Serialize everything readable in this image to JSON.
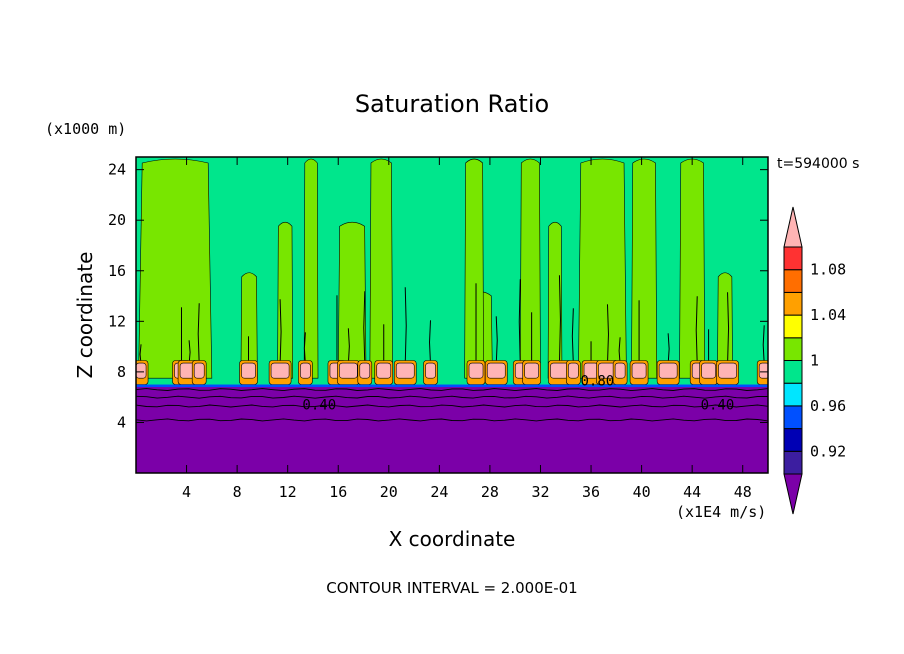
{
  "chart_data": {
    "type": "heatmap",
    "title": "Saturation Ratio",
    "xlabel": "X coordinate",
    "ylabel": "Z coordinate",
    "x_unit": "(x1E4 m/s)",
    "y_unit": "(x1000 m)",
    "time_label": "t=594000 s",
    "footer": "CONTOUR INTERVAL = 2.000E-01",
    "xlim": [
      0,
      50
    ],
    "ylim": [
      0,
      25
    ],
    "x_ticks": [
      "4",
      "8",
      "12",
      "16",
      "20",
      "24",
      "28",
      "32",
      "36",
      "40",
      "44",
      "48"
    ],
    "x_tick_values": [
      4,
      8,
      12,
      16,
      20,
      24,
      28,
      32,
      36,
      40,
      44,
      48
    ],
    "y_ticks": [
      "4",
      "8",
      "12",
      "16",
      "20",
      "24"
    ],
    "y_tick_values": [
      4,
      8,
      12,
      16,
      20,
      24
    ],
    "contour_labels": [
      {
        "text": "0.40",
        "x": 14.5,
        "y": 5.4
      },
      {
        "text": "0.80",
        "x": 36.5,
        "y": 7.3
      },
      {
        "text": "0.40",
        "x": 46.0,
        "y": 5.4
      }
    ],
    "colorbar": {
      "levels": [
        0.92,
        0.96,
        1,
        1.04,
        1.08
      ],
      "labels": [
        "0.92",
        "0.96",
        "1",
        "1.04",
        "1.08"
      ],
      "colors": [
        "#7b00a8",
        "#3c1ea0",
        "#0000b4",
        "#0050ff",
        "#00e6ff",
        "#00e68c",
        "#78e600",
        "#ffff00",
        "#ffa000",
        "#ff6e00",
        "#ff3232",
        "#ffb4b4"
      ]
    },
    "fields": {
      "dry_layer": {
        "ymin": 0,
        "ymax": 6.8,
        "color": "#7b00a8"
      },
      "background": {
        "ymin": 6.8,
        "ymax": 25,
        "color": "#00e68c"
      },
      "supersaturated_columns_color": "#78e600",
      "columns": [
        {
          "x0": 0.2,
          "x1": 6.0,
          "ytop": 25
        },
        {
          "x0": 8.3,
          "x1": 9.6,
          "ytop": 16
        },
        {
          "x0": 11.2,
          "x1": 12.4,
          "ytop": 20
        },
        {
          "x0": 13.3,
          "x1": 14.4,
          "ytop": 25
        },
        {
          "x0": 16.0,
          "x1": 18.2,
          "ytop": 20
        },
        {
          "x0": 18.5,
          "x1": 20.3,
          "ytop": 25
        },
        {
          "x0": 26.3,
          "x1": 28.2,
          "ytop": 14.5
        },
        {
          "x0": 26.0,
          "x1": 27.5,
          "ytop": 25
        },
        {
          "x0": 30.4,
          "x1": 32.0,
          "ytop": 25
        },
        {
          "x0": 32.6,
          "x1": 33.7,
          "ytop": 20
        },
        {
          "x0": 35.0,
          "x1": 38.8,
          "ytop": 25
        },
        {
          "x0": 39.2,
          "x1": 41.2,
          "ytop": 25
        },
        {
          "x0": 43.0,
          "x1": 45.0,
          "ytop": 25
        },
        {
          "x0": 46.0,
          "x1": 47.2,
          "ytop": 16
        },
        {
          "x0": 49.2,
          "x1": 50.0,
          "ytop": 9
        }
      ],
      "cells": [
        0.4,
        3.6,
        4.2,
        5.0,
        8.9,
        11.4,
        13.4,
        15.9,
        16.8,
        18.1,
        19.6,
        21.3,
        23.3,
        26.9,
        28.5,
        30.4,
        31.3,
        33.5,
        34.6,
        36.0,
        37.3,
        38.3,
        39.8,
        42.1,
        44.4,
        45.3,
        46.8,
        49.7
      ]
    }
  }
}
